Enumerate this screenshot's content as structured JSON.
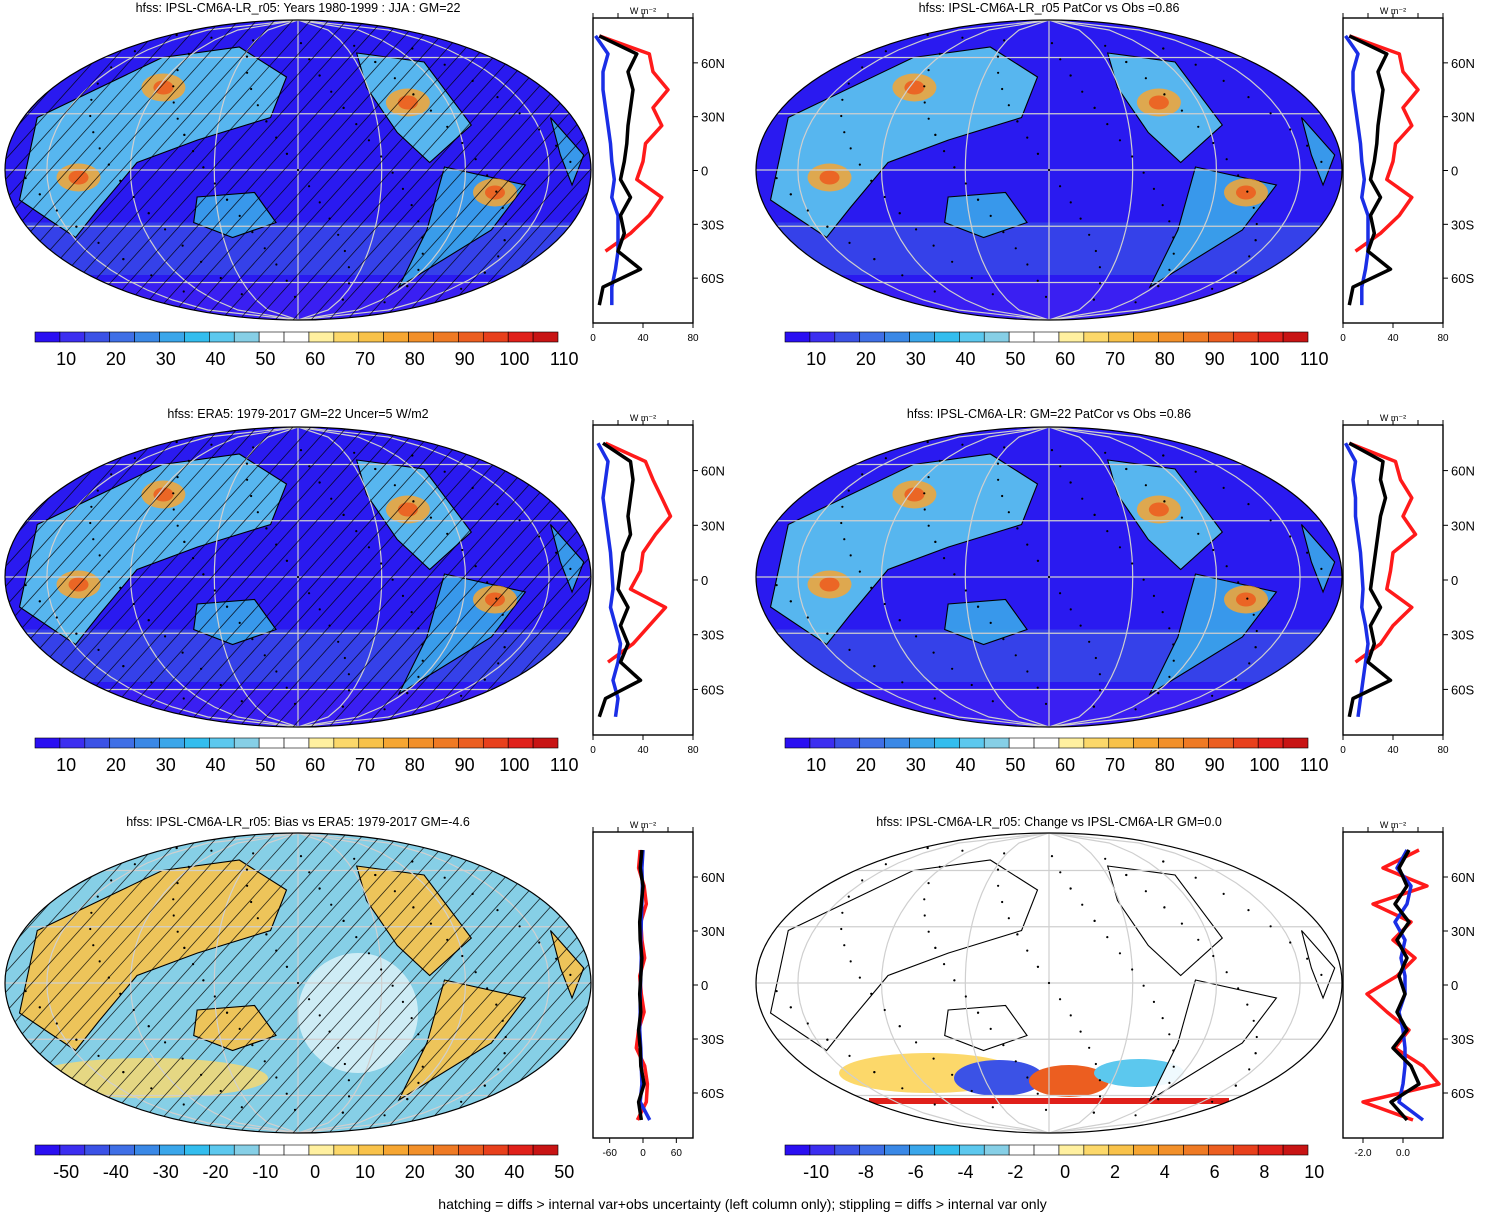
{
  "footer": "hatching = diffs > internal var+obs uncertainty (left column only); stippling = diffs > internal var only",
  "profile_unit": "W m⁻²",
  "latitude_ticks": [
    "60N",
    "30N",
    "0",
    "30S",
    "60S"
  ],
  "colors": {
    "mean_palette": [
      "#2a0ff2",
      "#3c2ef0",
      "#3b52e6",
      "#3f6fe6",
      "#3a88e6",
      "#3aa6ea",
      "#33bdee",
      "#5cc8ee",
      "#86cfe6",
      "#ffffff",
      "#ffffff",
      "#fff0a0",
      "#fcd86a",
      "#f8c24a",
      "#f6a632",
      "#f2902a",
      "#ef7a24",
      "#ec5e20",
      "#e8401c",
      "#e0201a",
      "#c81414"
    ],
    "diff_palette": [
      "#2a0ff2",
      "#3c2ef0",
      "#3b52e6",
      "#3f6fe6",
      "#3a88e6",
      "#3aa6ea",
      "#33bdee",
      "#5cc8ee",
      "#86cfe6",
      "#ffffff",
      "#ffffff",
      "#fff0a0",
      "#fcd86a",
      "#f8c24a",
      "#f6a632",
      "#f2902a",
      "#ef7a24",
      "#ec5e20",
      "#e8401c",
      "#e0201a",
      "#c81414"
    ],
    "land": "#000000",
    "profile_model": "#000000",
    "profile_obs": "#ff1a1a",
    "profile_ocean": "#1a2ee6"
  },
  "chart_data": [
    {
      "type": "heatmap",
      "title": "hfss: IPSL-CM6A-LR_r05: Years 1980-1999 : JJA : GM=22",
      "colorbar_labels": [
        "10",
        "20",
        "30",
        "40",
        "50",
        "60",
        "70",
        "80",
        "90",
        "100",
        "110"
      ],
      "profile": {
        "xticks": [
          "0",
          "40",
          "80"
        ],
        "xlim": [
          0,
          80
        ],
        "lat": [
          75,
          65,
          55,
          45,
          35,
          25,
          15,
          5,
          -5,
          -15,
          -25,
          -35,
          -45,
          -55,
          -65,
          -75
        ],
        "model": [
          5,
          35,
          28,
          32,
          30,
          28,
          27,
          25,
          22,
          30,
          22,
          25,
          20,
          38,
          8,
          5
        ],
        "obs": [
          5,
          45,
          48,
          60,
          48,
          55,
          42,
          40,
          35,
          55,
          45,
          30,
          10,
          null,
          null,
          null
        ],
        "ocean": [
          2,
          12,
          8,
          8,
          10,
          12,
          14,
          15,
          17,
          15,
          20,
          20,
          20,
          18,
          15,
          15
        ]
      }
    },
    {
      "type": "heatmap",
      "title": "hfss: IPSL-CM6A-LR_r05 PatCor vs Obs =0.86",
      "colorbar_labels": [
        "10",
        "20",
        "30",
        "40",
        "50",
        "60",
        "70",
        "80",
        "90",
        "100",
        "110"
      ],
      "profile": {
        "xticks": [
          "0",
          "40",
          "80"
        ],
        "xlim": [
          0,
          80
        ],
        "lat": [
          75,
          65,
          55,
          45,
          35,
          25,
          15,
          5,
          -5,
          -15,
          -25,
          -35,
          -45,
          -55,
          -65,
          -75
        ],
        "model": [
          5,
          35,
          28,
          32,
          30,
          28,
          27,
          25,
          22,
          30,
          22,
          25,
          20,
          38,
          8,
          5
        ],
        "obs": [
          5,
          45,
          48,
          60,
          48,
          55,
          42,
          40,
          35,
          55,
          45,
          30,
          10,
          null,
          null,
          null
        ],
        "ocean": [
          2,
          12,
          8,
          8,
          10,
          12,
          14,
          15,
          17,
          15,
          20,
          20,
          20,
          18,
          15,
          15
        ]
      }
    },
    {
      "type": "heatmap",
      "title": "hfss: ERA5: 1979-2017 GM=22 Uncer=5 W/m2",
      "colorbar_labels": [
        "10",
        "20",
        "30",
        "40",
        "50",
        "60",
        "70",
        "80",
        "90",
        "100",
        "110"
      ],
      "profile": {
        "xticks": [
          "0",
          "40",
          "80"
        ],
        "xlim": [
          0,
          80
        ],
        "lat": [
          75,
          65,
          55,
          45,
          35,
          25,
          15,
          5,
          -5,
          -15,
          -25,
          -35,
          -45,
          -55,
          -65,
          -75
        ],
        "model": [
          8,
          30,
          32,
          30,
          28,
          30,
          24,
          22,
          20,
          28,
          22,
          28,
          22,
          38,
          10,
          5
        ],
        "obs": [
          10,
          42,
          48,
          55,
          62,
          50,
          40,
          38,
          30,
          58,
          45,
          32,
          12,
          null,
          null,
          null
        ],
        "ocean": [
          4,
          12,
          10,
          8,
          10,
          12,
          14,
          15,
          16,
          14,
          18,
          22,
          20,
          16,
          20,
          18
        ]
      }
    },
    {
      "type": "heatmap",
      "title": "hfss: IPSL-CM6A-LR: GM=22 PatCor vs Obs =0.86",
      "colorbar_labels": [
        "10",
        "20",
        "30",
        "40",
        "50",
        "60",
        "70",
        "80",
        "90",
        "100",
        "110"
      ],
      "profile": {
        "xticks": [
          "0",
          "40",
          "80"
        ],
        "xlim": [
          0,
          80
        ],
        "lat": [
          75,
          65,
          55,
          45,
          35,
          25,
          15,
          5,
          -5,
          -15,
          -25,
          -35,
          -45,
          -55,
          -65,
          -75
        ],
        "model": [
          5,
          32,
          30,
          34,
          30,
          28,
          26,
          24,
          22,
          30,
          22,
          25,
          20,
          38,
          8,
          5
        ],
        "obs": [
          5,
          42,
          46,
          55,
          48,
          58,
          40,
          38,
          35,
          55,
          40,
          30,
          10,
          null,
          null,
          null
        ],
        "ocean": [
          2,
          10,
          8,
          10,
          10,
          12,
          14,
          15,
          16,
          15,
          18,
          20,
          18,
          16,
          14,
          12
        ]
      }
    },
    {
      "type": "heatmap",
      "title": "hfss: IPSL-CM6A-LR_r05: Bias vs ERA5: 1979-2017 GM=-4.6",
      "colorbar_labels": [
        "-50",
        "-40",
        "-30",
        "-20",
        "-10",
        "0",
        "10",
        "20",
        "30",
        "40",
        "50"
      ],
      "profile": {
        "xticks": [
          "-60",
          "0",
          "60"
        ],
        "xlim": [
          -90,
          90
        ],
        "lat": [
          75,
          65,
          55,
          45,
          35,
          25,
          15,
          5,
          -5,
          -15,
          -25,
          -35,
          -45,
          -55,
          -65,
          -75
        ],
        "model": [
          -2,
          -5,
          0,
          -3,
          -6,
          -5,
          -2,
          -4,
          -6,
          -4,
          -8,
          -5,
          -4,
          2,
          -8,
          -3
        ],
        "obs": [
          -5,
          -8,
          2,
          6,
          -4,
          -2,
          3,
          -6,
          -3,
          2,
          -8,
          -12,
          3,
          8,
          6,
          -10
        ],
        "ocean": [
          0,
          -2,
          -1,
          -2,
          -3,
          -4,
          -3,
          -4,
          -5,
          -5,
          -6,
          -4,
          -3,
          -2,
          -5,
          12
        ]
      }
    },
    {
      "type": "heatmap",
      "title": "hfss: IPSL-CM6A-LR_r05: Change vs IPSL-CM6A-LR GM=0.0",
      "colorbar_labels": [
        "-10",
        "-8",
        "-6",
        "-4",
        "-2",
        "0",
        "2",
        "4",
        "6",
        "8",
        "10"
      ],
      "profile": {
        "xticks": [
          "-2.0",
          "0.0"
        ],
        "xlim": [
          -3,
          2
        ],
        "lat": [
          75,
          65,
          55,
          45,
          35,
          25,
          15,
          5,
          -5,
          -15,
          -25,
          -35,
          -45,
          -55,
          -65,
          -75
        ],
        "model": [
          0.3,
          -0.2,
          0.2,
          -0.4,
          0.3,
          -0.3,
          0.2,
          -0.2,
          0.1,
          -0.3,
          0.2,
          -0.5,
          0.4,
          0.8,
          -0.6,
          0.2
        ],
        "obs": [
          0.8,
          -1.0,
          1.2,
          -1.5,
          0.4,
          -0.5,
          0.6,
          -0.3,
          -1.8,
          -0.8,
          0.3,
          -0.4,
          1.0,
          1.8,
          -2.0,
          0.5
        ],
        "ocean": [
          0.2,
          -0.3,
          0.4,
          0.2,
          -0.4,
          0.1,
          -0.1,
          0.1,
          0.1,
          -0.2,
          0.0,
          0.1,
          0.1,
          0.0,
          -0.2,
          1.0
        ]
      }
    }
  ]
}
